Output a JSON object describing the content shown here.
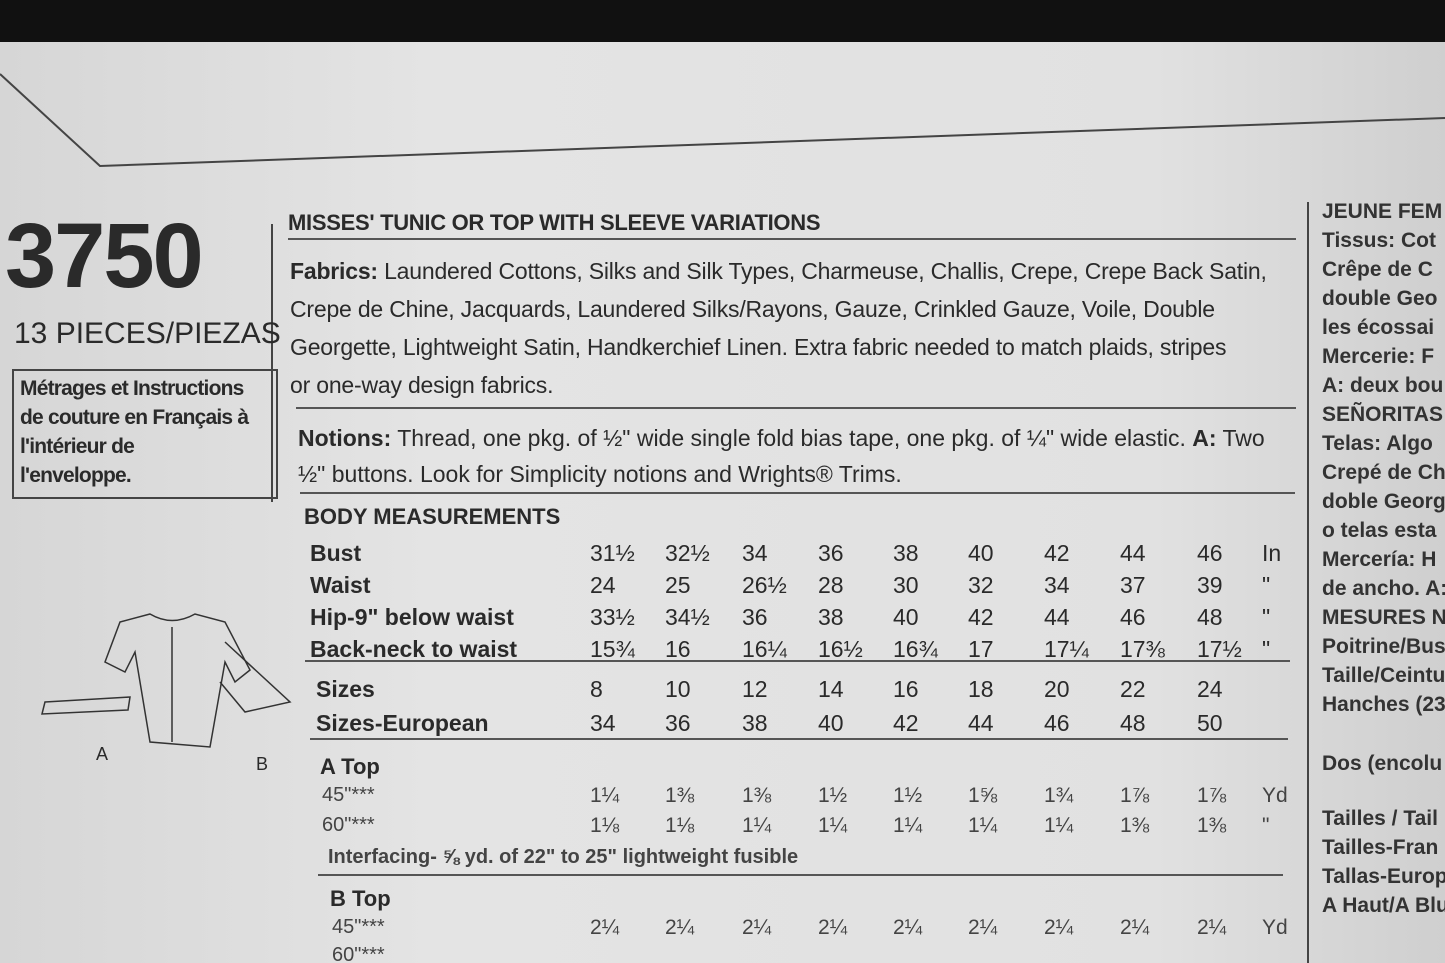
{
  "pattern_number": "3750",
  "pieces": "13 PIECES/PIEZAS",
  "french_note": [
    "Métrages et Instructions",
    "de couture en Français à",
    "l'intérieur de",
    "l'enveloppe."
  ],
  "view_labels": [
    "A",
    "B"
  ],
  "title": "MISSES' TUNIC OR TOP WITH SLEEVE VARIATIONS",
  "fabrics": {
    "label": "Fabrics:",
    "lines": [
      "Laundered Cottons, Silks and Silk Types, Charmeuse, Challis, Crepe, Crepe Back Satin,",
      "Crepe de Chine, Jacquards, Laundered Silks/Rayons, Gauze, Crinkled Gauze, Voile, Double",
      "Georgette, Lightweight Satin, Handkerchief Linen. Extra fabric needed to match plaids, stripes",
      "or one-way design fabrics."
    ]
  },
  "notions": {
    "label": "Notions:",
    "text": "Thread, one pkg. of ½\" wide single fold bias tape, one pkg. of ¼\" wide elastic.",
    "view": "A:",
    "text2": "Two",
    "line2": "½\" buttons. Look for Simplicity notions and Wrights® Trims."
  },
  "body_measurements": {
    "heading": "BODY MEASUREMENTS",
    "rows": [
      [
        "Bust",
        "31½",
        "32½",
        "34",
        "36",
        "38",
        "40",
        "42",
        "44",
        "46",
        "In"
      ],
      [
        "Waist",
        "24",
        "25",
        "26½",
        "28",
        "30",
        "32",
        "34",
        "37",
        "39",
        "\""
      ],
      [
        "Hip-9\" below waist",
        "33½",
        "34½",
        "36",
        "38",
        "40",
        "42",
        "44",
        "46",
        "48",
        "\""
      ],
      [
        "Back-neck to waist",
        "15¾",
        "16",
        "16¼",
        "16½",
        "16¾",
        "17",
        "17¼",
        "17⅜",
        "17½",
        "\""
      ]
    ]
  },
  "sizes": {
    "rows": [
      [
        "Sizes",
        "8",
        "10",
        "12",
        "14",
        "16",
        "18",
        "20",
        "22",
        "24"
      ],
      [
        "Sizes-European",
        "34",
        "36",
        "38",
        "40",
        "42",
        "44",
        "46",
        "48",
        "50"
      ]
    ]
  },
  "a_top": {
    "heading": "A Top",
    "rows": [
      [
        "45\"***",
        "1¼",
        "1⅜",
        "1⅜",
        "1½",
        "1½",
        "1⅝",
        "1¾",
        "1⅞",
        "1⅞",
        "Yd"
      ],
      [
        "60\"***",
        "1⅛",
        "1⅛",
        "1¼",
        "1¼",
        "1¼",
        "1¼",
        "1¼",
        "1⅜",
        "1⅜",
        "\""
      ]
    ],
    "interfacing": "Interfacing- ⅝ yd. of 22\" to 25\" lightweight fusible"
  },
  "b_top": {
    "heading": "B Top",
    "rows": [
      [
        "45\"***",
        "2¼",
        "2¼",
        "2¼",
        "2¼",
        "2¼",
        "2¼",
        "2¼",
        "2¼",
        "2¼",
        "Yd"
      ],
      [
        "60\"***"
      ]
    ]
  },
  "side_panel": [
    "JEUNE FEM",
    "Tissus: Cot",
    "Crêpe de C",
    "double Geo",
    "les écossai",
    "Mercerie: F",
    "A: deux bou",
    "SEÑORITAS",
    "Telas: Algo",
    "Crepé de Ch",
    "doble Georg",
    "o telas esta",
    "Mercería: H",
    "de ancho. A:",
    "MESURES N",
    "Poitrine/Bus",
    "Taille/Ceintu",
    "Hanches (23",
    "Dos (encolu",
    "Tailles / Tail",
    "Tailles-Fran",
    "Tallas-Europ",
    "A Haut/A Blus"
  ]
}
